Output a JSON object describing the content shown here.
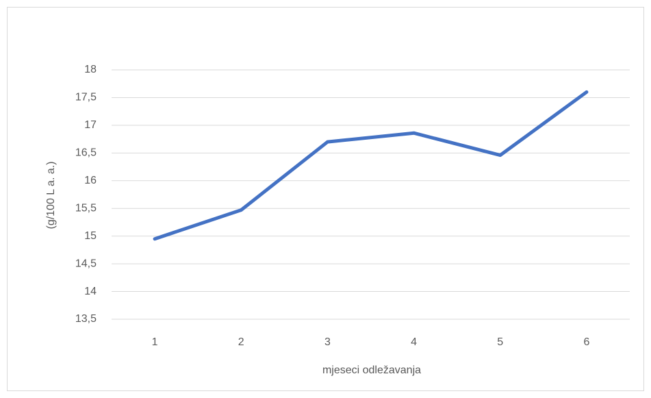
{
  "chart_data": {
    "type": "line",
    "x_label": "mjeseci odležavanja",
    "y_label": "(g/100 L a. a.)",
    "categories": [
      "1",
      "2",
      "3",
      "4",
      "5",
      "6"
    ],
    "series": [
      {
        "color": "#4472c4",
        "values": [
          14.95,
          15.47,
          16.7,
          16.86,
          16.46,
          17.6
        ]
      }
    ],
    "ylim": [
      13.5,
      18
    ],
    "yticks": [
      {
        "value": 13.5,
        "label": "13,5"
      },
      14,
      {
        "value": 14.5,
        "label": "14,5"
      },
      15,
      {
        "value": 15.5,
        "label": "15,5"
      },
      16,
      {
        "value": 16.5,
        "label": "16,5"
      },
      17,
      {
        "value": 17.5,
        "label": "17,5"
      },
      18
    ],
    "grid": true
  }
}
